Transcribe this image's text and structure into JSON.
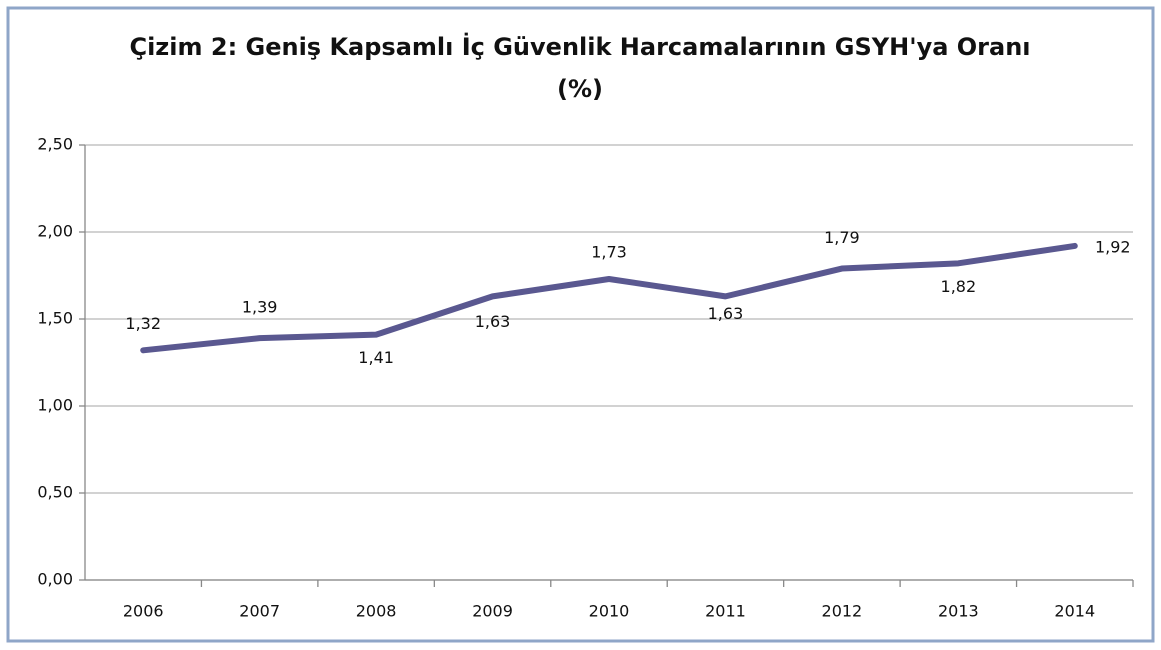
{
  "chart_data": {
    "type": "line",
    "title": [
      "Çizim 2: Geniş Kapsamlı  İç Güvenlik  Harcamalarının  GSYH'ya Oranı",
      "(%)"
    ],
    "categories": [
      "2006",
      "2007",
      "2008",
      "2009",
      "2010",
      "2011",
      "2012",
      "2013",
      "2014"
    ],
    "series": [
      {
        "color": "#5a5890",
        "values": [
          1.32,
          1.39,
          1.41,
          1.63,
          1.73,
          1.63,
          1.79,
          1.82,
          1.92
        ],
        "value_labels": [
          "1,32",
          "1,39",
          "1,41",
          "1,63",
          "1,73",
          "1,63",
          "1,79",
          "1,82",
          "1,92"
        ]
      }
    ],
    "ylim": [
      0,
      2.5
    ],
    "yticks": [
      {
        "value": 0,
        "label": "0,00"
      },
      {
        "value": 0.5,
        "label": "0,50"
      },
      {
        "value": 1,
        "label": "1,00"
      },
      {
        "value": 1.5,
        "label": "1,50"
      },
      {
        "value": 2,
        "label": "2,00"
      },
      {
        "value": 2.5,
        "label": "2,50"
      }
    ],
    "grid": true
  }
}
